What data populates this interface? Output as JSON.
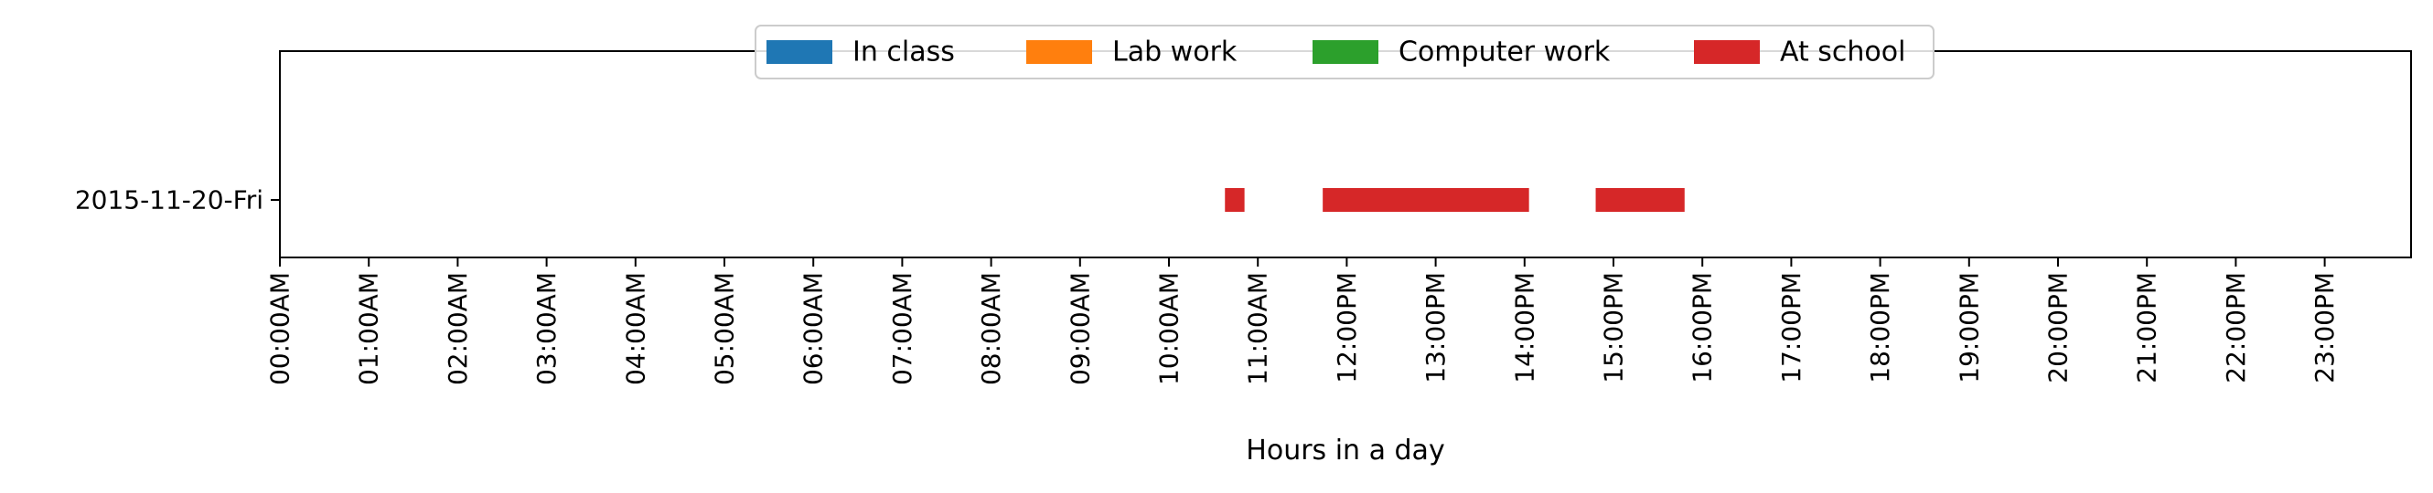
{
  "chart_data": {
    "type": "timeline",
    "title": "",
    "xlabel": "Hours in a day",
    "ylabel": "",
    "xlim": [
      0,
      24
    ],
    "grid": false,
    "legend_placement": "upper center",
    "x_tick_labels": [
      "00:00AM",
      "01:00AM",
      "02:00AM",
      "03:00AM",
      "04:00AM",
      "05:00AM",
      "06:00AM",
      "07:00AM",
      "08:00AM",
      "09:00AM",
      "10:00AM",
      "11:00AM",
      "12:00PM",
      "13:00PM",
      "14:00PM",
      "15:00PM",
      "16:00PM",
      "17:00PM",
      "18:00PM",
      "19:00PM",
      "20:00PM",
      "21:00PM",
      "22:00PM",
      "23:00PM"
    ],
    "categories": [
      "2015-11-20-Fri"
    ],
    "series": [
      {
        "name": "In class",
        "color": "#1f77b4",
        "segments": []
      },
      {
        "name": "Lab work",
        "color": "#ff7f0e",
        "segments": []
      },
      {
        "name": "Computer work",
        "color": "#2ca02c",
        "segments": []
      },
      {
        "name": "At school",
        "color": "#d62728",
        "segments": [
          {
            "category": "2015-11-20-Fri",
            "start": 10.63,
            "end": 10.85
          },
          {
            "category": "2015-11-20-Fri",
            "start": 11.73,
            "end": 14.05
          },
          {
            "category": "2015-11-20-Fri",
            "start": 14.8,
            "end": 15.8
          }
        ]
      }
    ]
  }
}
